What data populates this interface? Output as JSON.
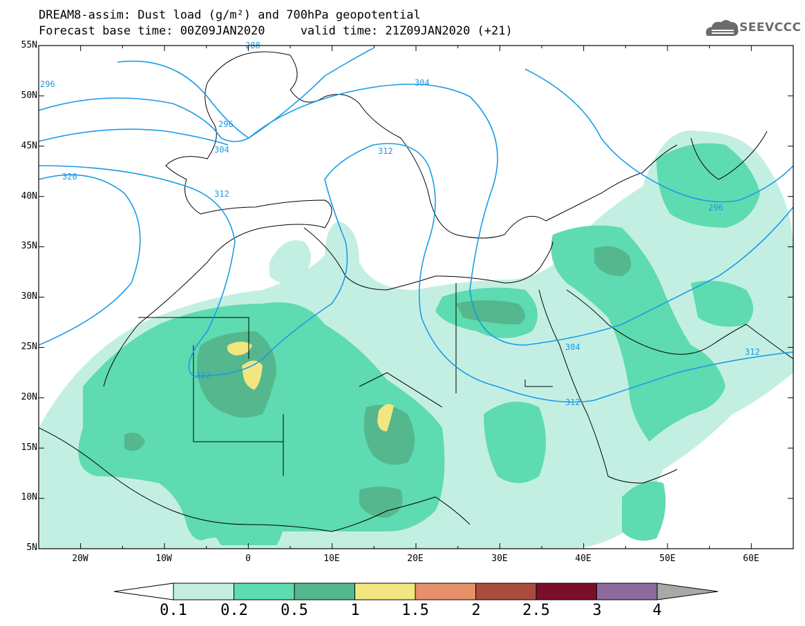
{
  "header": {
    "title_line1": "DREAM8-assim: Dust load (g/m²) and 700hPa geopotential",
    "title_line2": "Forecast base time: 00Z09JAN2020     valid time: 21Z09JAN2020 (+21)"
  },
  "logo": {
    "text": "SEEVCCC",
    "icon": "cloud-logo-icon"
  },
  "axes": {
    "lat_labels": [
      "55N",
      "50N",
      "45N",
      "40N",
      "35N",
      "30N",
      "25N",
      "20N",
      "15N",
      "10N",
      "5N"
    ],
    "lon_labels": [
      "20W",
      "10W",
      "0",
      "10E",
      "20E",
      "30E",
      "40E",
      "50E",
      "60E"
    ],
    "lon_range": [
      -25,
      65
    ],
    "lat_range": [
      5,
      55
    ]
  },
  "contours": {
    "units": "dam",
    "labels": [
      "288",
      "296",
      "296",
      "304",
      "304",
      "312",
      "312",
      "312",
      "320",
      "296",
      "304",
      "312",
      "312"
    ]
  },
  "colorbar": {
    "levels": [
      "0.1",
      "0.2",
      "0.5",
      "1",
      "1.5",
      "2",
      "2.5",
      "3",
      "4"
    ],
    "colors": [
      "#c3efe3",
      "#5edbb0",
      "#54b78d",
      "#f1e680",
      "#e6916a",
      "#a94c3f",
      "#7b0f2b",
      "#8b6a9e"
    ],
    "under_color": "#ffffff",
    "over_color": "#a8a8a8"
  },
  "colors": {
    "contour_line": "#1b9be6",
    "coastline": "#000000"
  }
}
